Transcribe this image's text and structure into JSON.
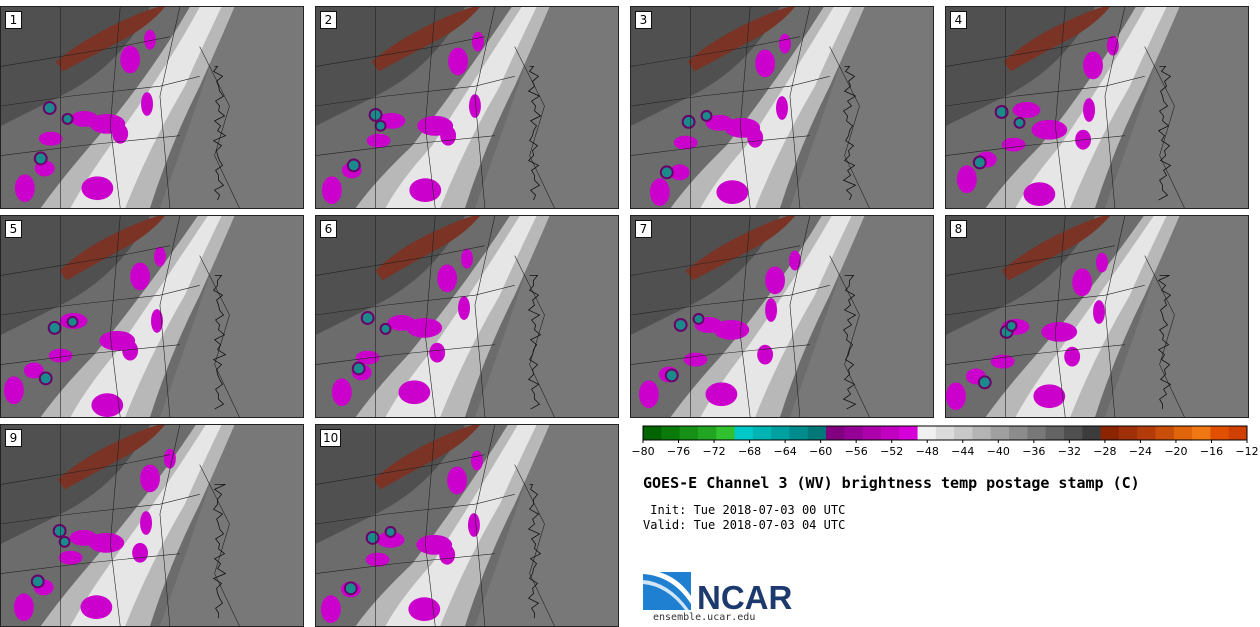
{
  "panels": [
    {
      "label": "1",
      "variant": 0
    },
    {
      "label": "2",
      "variant": 1
    },
    {
      "label": "3",
      "variant": 2
    },
    {
      "label": "4",
      "variant": 3
    },
    {
      "label": "5",
      "variant": 4
    },
    {
      "label": "6",
      "variant": 5
    },
    {
      "label": "7",
      "variant": 6
    },
    {
      "label": "8",
      "variant": 7
    },
    {
      "label": "9",
      "variant": 8
    },
    {
      "label": "10",
      "variant": 9
    }
  ],
  "colorbar": {
    "tick_labels": [
      "-80",
      "-76",
      "-72",
      "-68",
      "-64",
      "-60",
      "-56",
      "-52",
      "-48",
      "-44",
      "-40",
      "-36",
      "-32",
      "-28",
      "-24",
      "-20",
      "-16",
      "-12"
    ],
    "colors": [
      "#006400",
      "#0a7a0a",
      "#169016",
      "#22a622",
      "#30c030",
      "#00c8c8",
      "#00b4b4",
      "#00a0a0",
      "#008c8c",
      "#007878",
      "#800080",
      "#960096",
      "#ac00ac",
      "#c200c2",
      "#d800d8",
      "#f0f0f0",
      "#dcdcdc",
      "#c8c8c8",
      "#b4b4b4",
      "#a0a0a0",
      "#8c8c8c",
      "#787878",
      "#646464",
      "#505050",
      "#3c3c3c",
      "#8b2500",
      "#a0300a",
      "#b43c0a",
      "#c84e0a",
      "#e0640a",
      "#f07814",
      "#e05000",
      "#d04000"
    ]
  },
  "title": "GOES-E Channel 3 (WV) brightness temp postage stamp (C)",
  "init": " Init: Tue 2018-07-03 00 UTC",
  "valid": "Valid: Tue 2018-07-03 04 UTC",
  "logo_text": "NCAR",
  "site": "ensemble.ucar.edu",
  "colors": {
    "magenta": "#cc00cc",
    "teal": "#1a8a8a",
    "rust": "#7a3324",
    "background": "#6e6e6e"
  }
}
